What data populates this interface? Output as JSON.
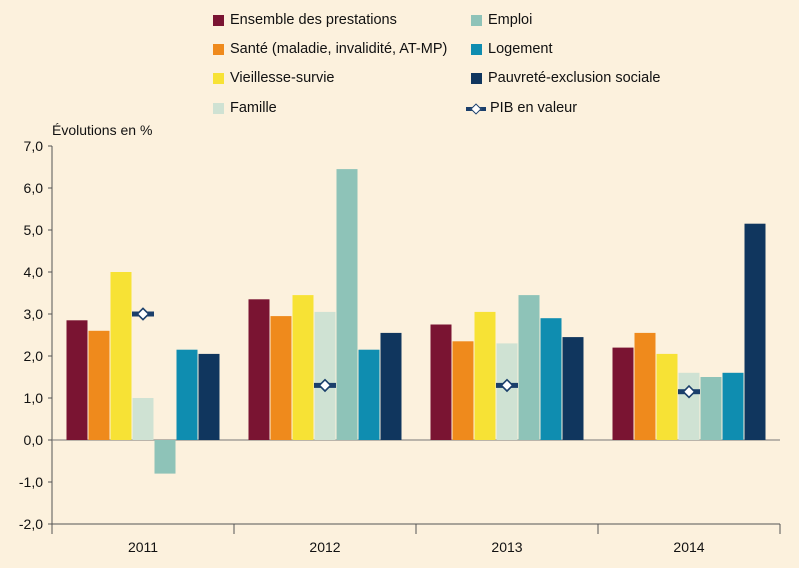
{
  "colors": {
    "ensemble": "#7a1432",
    "sante": "#ef8a1c",
    "vieillesse": "#f7e235",
    "famille": "#cfe2d3",
    "emploi": "#8ec3b8",
    "logement": "#0f8db0",
    "pauvrete": "#10365e",
    "pib": "#1b3f6b"
  },
  "chart_data": {
    "type": "bar",
    "ylabel": "Évolutions en %",
    "ylim": [
      -2.0,
      7.0
    ],
    "yticks": [
      "7,0",
      "6,0",
      "5,0",
      "4,0",
      "3,0",
      "2,0",
      "1,0",
      "0,0",
      "-1,0",
      "-2,0"
    ],
    "categories": [
      "2011",
      "2012",
      "2013",
      "2014"
    ],
    "series": [
      {
        "name": "Ensemble des prestations",
        "values": [
          2.85,
          3.35,
          2.75,
          2.2
        ]
      },
      {
        "name": "Santé (maladie, invalidité, AT-MP)",
        "values": [
          2.6,
          2.95,
          2.35,
          2.55
        ]
      },
      {
        "name": "Vieillesse-survie",
        "values": [
          4.0,
          3.45,
          3.05,
          2.05
        ]
      },
      {
        "name": "Famille",
        "values": [
          1.0,
          3.05,
          2.3,
          1.6
        ]
      },
      {
        "name": "Emploi",
        "values": [
          -0.8,
          6.45,
          3.45,
          1.5
        ]
      },
      {
        "name": "Logement",
        "values": [
          2.15,
          2.15,
          2.9,
          1.6
        ]
      },
      {
        "name": "Pauvreté-exclusion sociale",
        "values": [
          2.05,
          2.55,
          2.45,
          5.15
        ]
      }
    ],
    "pib": {
      "name": "PIB en valeur",
      "values": [
        3.0,
        1.3,
        1.3,
        1.15
      ]
    },
    "legend": [
      {
        "label": "Ensemble des prestations",
        "key": "ensemble"
      },
      {
        "label": "Santé (maladie, invalidité, AT-MP)",
        "key": "sante"
      },
      {
        "label": "Vieillesse-survie",
        "key": "vieillesse"
      },
      {
        "label": "Famille",
        "key": "famille"
      },
      {
        "label": "Emploi",
        "key": "emploi"
      },
      {
        "label": "Logement",
        "key": "logement"
      },
      {
        "label": "Pauvreté-exclusion sociale",
        "key": "pauvrete"
      },
      {
        "label": "PIB en valeur",
        "key": "pib"
      }
    ]
  }
}
